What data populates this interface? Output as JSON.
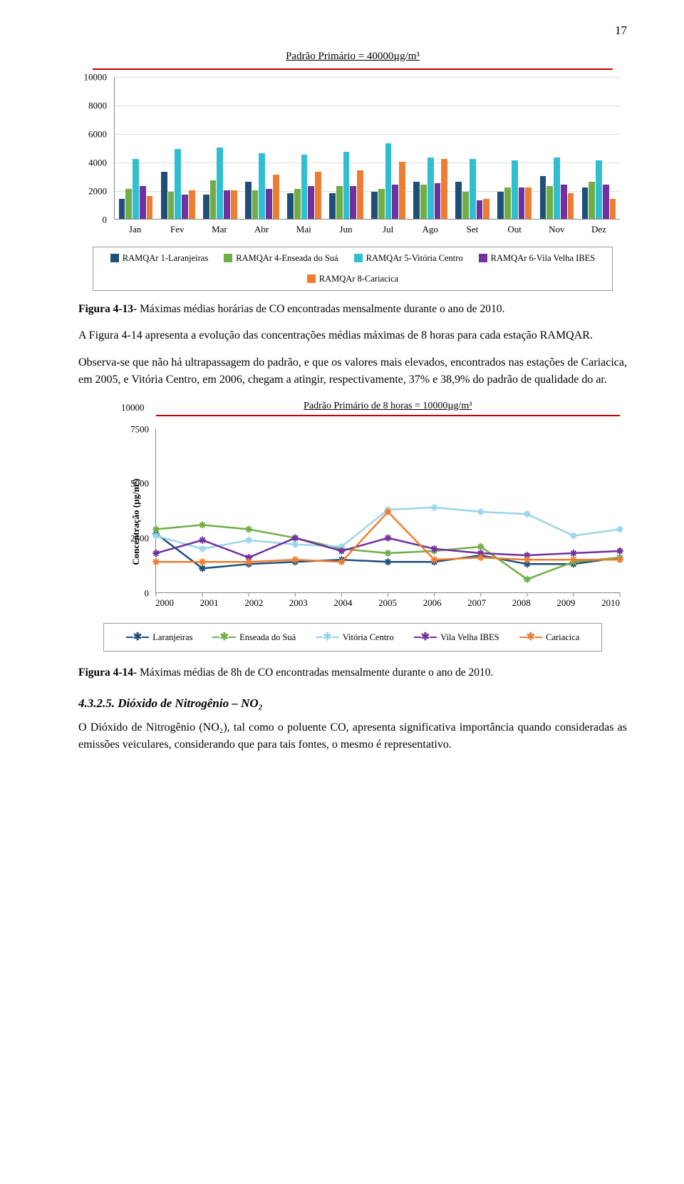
{
  "page_number": "17",
  "chart1": {
    "standard_text": "Padrão Primário = 40000µg/m³",
    "ylim": [
      0,
      10000
    ],
    "ystep": 2000,
    "months": [
      "Jan",
      "Fev",
      "Mar",
      "Abr",
      "Mai",
      "Jun",
      "Jul",
      "Ago",
      "Set",
      "Out",
      "Nov",
      "Dez"
    ],
    "series": [
      {
        "label": "RAMQAr 1-Laranjeiras",
        "color": "#1f4e79",
        "values": [
          1400,
          3300,
          1700,
          2600,
          1800,
          1800,
          1900,
          2600,
          2600,
          1900,
          3000,
          2200
        ]
      },
      {
        "label": "RAMQAr 4-Enseada do Suá",
        "color": "#70ad47",
        "values": [
          2100,
          1900,
          2700,
          2000,
          2100,
          2300,
          2100,
          2400,
          1900,
          2200,
          2300,
          2600
        ]
      },
      {
        "label": "RAMQAr 5-Vitória Centro",
        "color": "#2fbfd1",
        "values": [
          4200,
          4900,
          5000,
          4600,
          4500,
          4700,
          5300,
          4300,
          4200,
          4100,
          4300,
          4100
        ]
      },
      {
        "label": "RAMQAr 6-Vila Velha IBES",
        "color": "#7030a0",
        "values": [
          2300,
          1700,
          2000,
          2100,
          2300,
          2300,
          2400,
          2500,
          1300,
          2200,
          2400,
          2400
        ]
      },
      {
        "label": "RAMQAr 8-Cariacica",
        "color": "#ed7d31",
        "values": [
          1600,
          2000,
          2000,
          3100,
          3300,
          3400,
          4000,
          4200,
          1400,
          2200,
          1800,
          1400
        ]
      }
    ]
  },
  "caption1_bold": "Figura 4-13- ",
  "caption1_text": "Máximas médias horárias de CO encontradas mensalmente durante o ano de 2010.",
  "para1": "A Figura 4-14 apresenta a evolução das concentrações médias máximas de 8 horas para cada estação RAMQAR.",
  "para2": "Observa-se que não há ultrapassagem do padrão, e que os valores mais elevados, encontrados nas estações de Cariacica, em 2005, e Vitória Centro, em 2006, chegam a atingir, respectivamente, 37% e 38,9% do padrão de qualidade do ar.",
  "chart2": {
    "ymax_label": "10000",
    "standard_text": "Padrão Primário de 8 horas = 10000µg/m³",
    "ylabel": "Concentração (µg/m³)",
    "ylim": [
      0,
      7500
    ],
    "yticks": [
      0,
      2500,
      5000,
      7500
    ],
    "years": [
      "2000",
      "2001",
      "2002",
      "2003",
      "2004",
      "2005",
      "2006",
      "2007",
      "2008",
      "2009",
      "2010"
    ],
    "series": [
      {
        "label": "Laranjeiras",
        "color": "#1f4e79",
        "values": [
          2700,
          1100,
          1300,
          1400,
          1500,
          1400,
          1400,
          1700,
          1300,
          1300,
          1600
        ]
      },
      {
        "label": "Enseada do Suá",
        "color": "#70ad47",
        "values": [
          2900,
          3100,
          2900,
          2500,
          2000,
          1800,
          1900,
          2100,
          600,
          1400,
          1600
        ]
      },
      {
        "label": "Vitória Centro",
        "color": "#9bd5e8",
        "values": [
          2600,
          2000,
          2400,
          2200,
          2100,
          3800,
          3900,
          3700,
          3600,
          2600,
          2900
        ]
      },
      {
        "label": "Vila Velha IBES",
        "color": "#7030a0",
        "values": [
          1800,
          2400,
          1600,
          2500,
          1900,
          2500,
          2000,
          1800,
          1700,
          1800,
          1900
        ]
      },
      {
        "label": "Cariacica",
        "color": "#ed7d31",
        "values": [
          1400,
          1400,
          1400,
          1500,
          1400,
          3700,
          1500,
          1600,
          1500,
          1500,
          1500
        ]
      }
    ]
  },
  "caption2_bold": "Figura 4-14- ",
  "caption2_text": "Máximas médias de 8h de CO encontradas mensalmente durante o ano de 2010.",
  "section_no": "4.3.2.5. ",
  "section_title": "Dióxido de Nitrogênio – NO₂",
  "para3": "O Dióxido de Nitrogênio (NO₂), tal como o poluente CO, apresenta significativa importância quando consideradas as emissões veiculares, considerando que para tais fontes, o mesmo é representativo."
}
